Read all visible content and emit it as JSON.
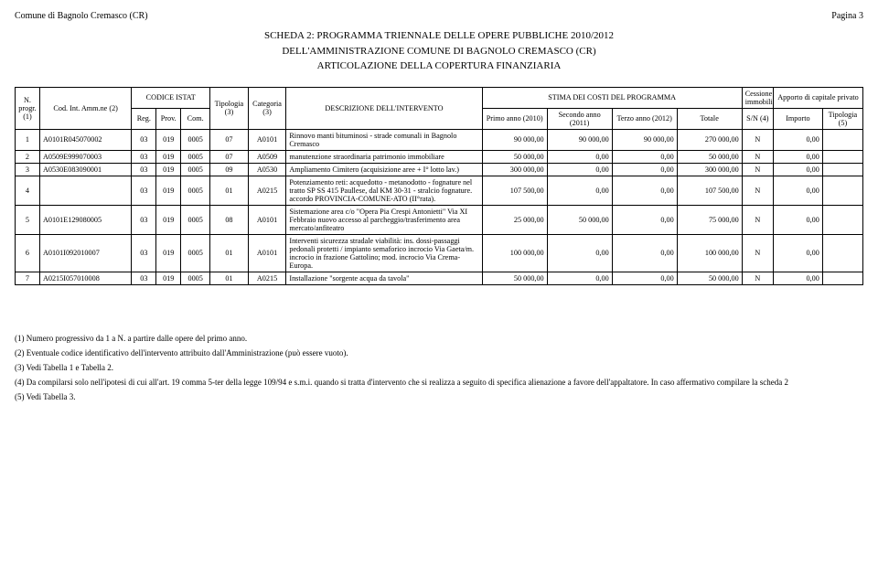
{
  "header": {
    "left": "Comune di Bagnolo Cremasco (CR)",
    "right": "Pagina 3"
  },
  "title": {
    "line1": "SCHEDA 2: PROGRAMMA TRIENNALE DELLE OPERE PUBBLICHE 2010/2012",
    "line2": "DELL'AMMINISTRAZIONE COMUNE DI BAGNOLO CREMASCO (CR)",
    "line3": "ARTICOLAZIONE DELLA COPERTURA FINANZIARIA"
  },
  "thead": {
    "n_progr": "N. progr. (1)",
    "cod_int": "Cod. Int. Amm.ne (2)",
    "codice_istat": "CODICE ISTAT",
    "reg": "Reg.",
    "prov": "Prov.",
    "com": "Com.",
    "tipologia3": "Tipologia (3)",
    "categoria3": "Categoria (3)",
    "descrizione": "DESCRIZIONE DELL'INTERVENTO",
    "stima": "STIMA DEI COSTI DEL PROGRAMMA",
    "primo": "Primo anno (2010)",
    "secondo": "Secondo anno (2011)",
    "terzo": "Terzo anno (2012)",
    "totale": "Totale",
    "cessione": "Cessione immobili",
    "sn": "S/N (4)",
    "apporto": "Apporto di capitale privato",
    "importo": "Importo",
    "tipologia5": "Tipologia (5)"
  },
  "rows": [
    {
      "n": "1",
      "cod": "A0101R045070002",
      "reg": "03",
      "prov": "019",
      "com": "0005",
      "tip": "07",
      "cat": "A0101",
      "desc": "Rinnovo manti bituminosi - strade comunali in Bagnolo Cremasco",
      "a2010": "90 000,00",
      "a2011": "90 000,00",
      "a2012": "90 000,00",
      "totale": "270 000,00",
      "sn": "N",
      "importo": "0,00",
      "tip5": ""
    },
    {
      "n": "2",
      "cod": "A0509E999070003",
      "reg": "03",
      "prov": "019",
      "com": "0005",
      "tip": "07",
      "cat": "A0509",
      "desc": "manutenzione straordinaria patrimonio immobiliare",
      "a2010": "50 000,00",
      "a2011": "0,00",
      "a2012": "0,00",
      "totale": "50 000,00",
      "sn": "N",
      "importo": "0,00",
      "tip5": ""
    },
    {
      "n": "3",
      "cod": "A0530E083090001",
      "reg": "03",
      "prov": "019",
      "com": "0005",
      "tip": "09",
      "cat": "A0530",
      "desc": "Ampliamento Cimitero (acquisizione aree + I° lotto lav.)",
      "a2010": "300 000,00",
      "a2011": "0,00",
      "a2012": "0,00",
      "totale": "300 000,00",
      "sn": "N",
      "importo": "0,00",
      "tip5": ""
    },
    {
      "n": "4",
      "cod": "",
      "reg": "03",
      "prov": "019",
      "com": "0005",
      "tip": "01",
      "cat": "A0215",
      "desc": "Potenziamento reti: acquedotto - metanodotto - fognature nel tratto SP SS 415 Paullese, dal KM 30-31 - stralcio fognature. accordo PROVINCIA-COMUNE-ATO (II°rata).",
      "a2010": "107 500,00",
      "a2011": "0,00",
      "a2012": "0,00",
      "totale": "107 500,00",
      "sn": "N",
      "importo": "0,00",
      "tip5": ""
    },
    {
      "n": "5",
      "cod": "A0101E129080005",
      "reg": "03",
      "prov": "019",
      "com": "0005",
      "tip": "08",
      "cat": "A0101",
      "desc": "Sistemazione area c/o \"Opera Pia Crespi Antonietti\" Via XI Febbraio nuovo accesso al parcheggio/trasferimento area mercato/anfiteatro",
      "a2010": "25 000,00",
      "a2011": "50 000,00",
      "a2012": "0,00",
      "totale": "75 000,00",
      "sn": "N",
      "importo": "0,00",
      "tip5": ""
    },
    {
      "n": "6",
      "cod": "A0101I092010007",
      "reg": "03",
      "prov": "019",
      "com": "0005",
      "tip": "01",
      "cat": "A0101",
      "desc": "Interventi sicurezza stradale viabilità: ins. dossi-passaggi pedonali protetti / impianto semaforico incrocio Via Gaeta/m. incrocio in frazione Gattolino; mod. incrocio Via Crema-Europa.",
      "a2010": "100 000,00",
      "a2011": "0,00",
      "a2012": "0,00",
      "totale": "100 000,00",
      "sn": "N",
      "importo": "0,00",
      "tip5": ""
    },
    {
      "n": "7",
      "cod": "A0215I057010008",
      "reg": "03",
      "prov": "019",
      "com": "0005",
      "tip": "01",
      "cat": "A0215",
      "desc": "Installazione \"sorgente acqua da tavola\"",
      "a2010": "50 000,00",
      "a2011": "0,00",
      "a2012": "0,00",
      "totale": "50 000,00",
      "sn": "N",
      "importo": "0,00",
      "tip5": ""
    }
  ],
  "footnotes": {
    "f1": "(1) Numero progressivo da 1 a N. a partire dalle opere del primo anno.",
    "f2": "(2) Eventuale codice identificativo dell'intervento attribuito dall'Amministrazione (può essere vuoto).",
    "f3": "(3) Vedi Tabella 1 e Tabella 2.",
    "f4": "(4) Da compilarsi solo nell'ipotesi di cui all'art. 19 comma 5-ter della legge 109/94 e s.m.i. quando si tratta d'intervento che si realizza a seguito di specifica alienazione a favore dell'appaltatore. In caso affermativo compilare la scheda 2",
    "f5": "(5) Vedi Tabella 3."
  }
}
